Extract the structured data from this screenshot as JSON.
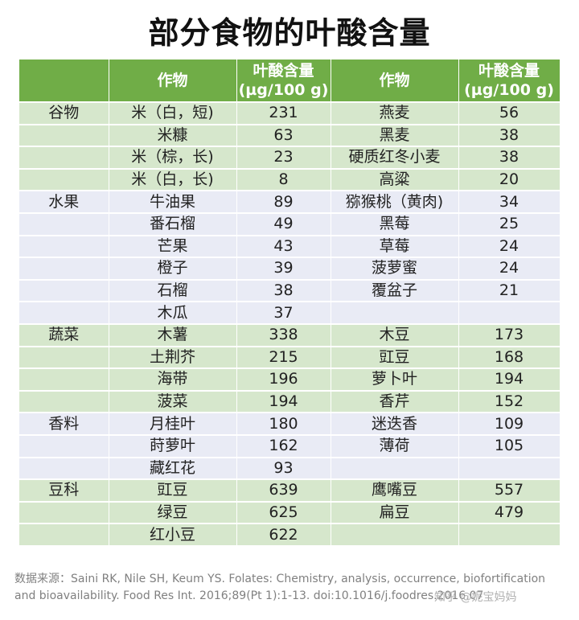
{
  "title": "部分食物的叶酸含量",
  "headers": {
    "category": "",
    "crop": "作物",
    "content_l1": "叶酸含量",
    "content_l2": "(µg/100 g)"
  },
  "rows": [
    {
      "cat": "谷物",
      "c1": "米（白，短)",
      "v1": "231",
      "c2": "燕麦",
      "v2": "56",
      "group": 1
    },
    {
      "cat": "",
      "c1": "米糠",
      "v1": "63",
      "c2": "黑麦",
      "v2": "38",
      "group": 1
    },
    {
      "cat": "",
      "c1": "米（棕，长)",
      "v1": "23",
      "c2": "硬质红冬小麦",
      "v2": "38",
      "group": 1
    },
    {
      "cat": "",
      "c1": "米（白，长)",
      "v1": "8",
      "c2": "高粱",
      "v2": "20",
      "group": 1
    },
    {
      "cat": "水果",
      "c1": "牛油果",
      "v1": "89",
      "c2": "猕猴桃（黄肉)",
      "v2": "34",
      "group": 2
    },
    {
      "cat": "",
      "c1": "番石榴",
      "v1": "49",
      "c2": "黑莓",
      "v2": "25",
      "group": 2
    },
    {
      "cat": "",
      "c1": "芒果",
      "v1": "43",
      "c2": "草莓",
      "v2": "24",
      "group": 2
    },
    {
      "cat": "",
      "c1": "橙子",
      "v1": "39",
      "c2": "菠萝蜜",
      "v2": "24",
      "group": 2
    },
    {
      "cat": "",
      "c1": "石榴",
      "v1": "38",
      "c2": "覆盆子",
      "v2": "21",
      "group": 2
    },
    {
      "cat": "",
      "c1": "木瓜",
      "v1": "37",
      "c2": "",
      "v2": "",
      "group": 2
    },
    {
      "cat": "蔬菜",
      "c1": "木薯",
      "v1": "338",
      "c2": "木豆",
      "v2": "173",
      "group": 1
    },
    {
      "cat": "",
      "c1": "土荆芥",
      "v1": "215",
      "c2": "豇豆",
      "v2": "168",
      "group": 1
    },
    {
      "cat": "",
      "c1": "海带",
      "v1": "196",
      "c2": "萝卜叶",
      "v2": "194",
      "group": 1
    },
    {
      "cat": "",
      "c1": "菠菜",
      "v1": "194",
      "c2": "香芹",
      "v2": "152",
      "group": 1
    },
    {
      "cat": "香料",
      "c1": "月桂叶",
      "v1": "180",
      "c2": "迷迭香",
      "v2": "109",
      "group": 2
    },
    {
      "cat": "",
      "c1": "莳萝叶",
      "v1": "162",
      "c2": "薄荷",
      "v2": "105",
      "group": 2
    },
    {
      "cat": "",
      "c1": "藏红花",
      "v1": "93",
      "c2": "",
      "v2": "",
      "group": 2
    },
    {
      "cat": "豆科",
      "c1": "豇豆",
      "v1": "639",
      "c2": "鹰嘴豆",
      "v2": "557",
      "group": 1
    },
    {
      "cat": "",
      "c1": "绿豆",
      "v1": "625",
      "c2": "扁豆",
      "v2": "479",
      "group": 1
    },
    {
      "cat": "",
      "c1": "红小豆",
      "v1": "622",
      "c2": "",
      "v2": "",
      "group": 1
    }
  ],
  "source_line1": "数据来源：Saini RK, Nile SH, Keum YS. Folates: Chemistry, analysis, occurrence, biofortification",
  "source_line2": "and bioavailability. Food Res Int. 2016;89(Pt 1):1-13. doi:10.1016/j.foodres.2016.07",
  "watermark": "知乎 @妮宝妈妈",
  "colors": {
    "header": "#70ad47",
    "band_green": "#d6e7cc",
    "band_lavender": "#e9ebf5"
  }
}
